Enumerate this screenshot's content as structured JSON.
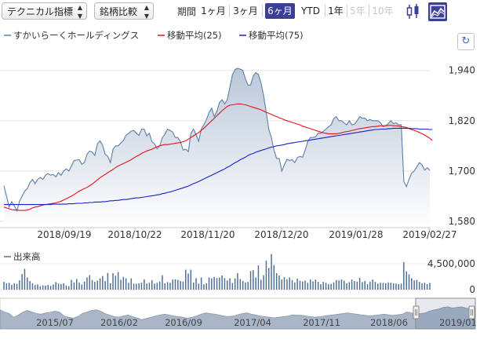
{
  "toolbar": {
    "indicator_select": "テクニカル指標",
    "compare_select": "銘柄比較",
    "period_label": "期間",
    "ranges": [
      {
        "label": "1ヶ月",
        "state": "normal"
      },
      {
        "label": "3ヶ月",
        "state": "normal"
      },
      {
        "label": "6ヶ月",
        "state": "active"
      },
      {
        "label": "YTD",
        "state": "normal"
      },
      {
        "label": "1年",
        "state": "normal"
      },
      {
        "label": "5年",
        "state": "disabled"
      },
      {
        "label": "10年",
        "state": "disabled"
      }
    ],
    "icons": [
      "candlestick-icon",
      "line-chart-icon"
    ],
    "reset_icon": "reset-zoom-icon"
  },
  "colors": {
    "price": "#5b7fa6",
    "area_top": "#b3c1d5",
    "ma25": "#e8131b",
    "ma75": "#1a21c9",
    "volume": "#4f6f94",
    "active": "#3c3f96"
  },
  "chart_data": [
    {
      "type": "line",
      "title": "",
      "legend": [
        "すかいらーくホールディングス",
        "移動平均(25)",
        "移動平均(75)"
      ],
      "x_ticks": [
        "2018/09/19",
        "2018/10/22",
        "2018/11/20",
        "2018/12/20",
        "2019/01/28",
        "2019/02/27"
      ],
      "y_ticks": [
        1580,
        1700,
        1820,
        1940
      ],
      "ylim": [
        1565,
        1990
      ],
      "grid": true,
      "series": [
        {
          "name": "すかいらーくホールディングス",
          "values": [
            1665,
            1640,
            1614,
            1627,
            1617,
            1605,
            1628,
            1640,
            1652,
            1658,
            1672,
            1680,
            1670,
            1680,
            1685,
            1680,
            1690,
            1694,
            1690,
            1692,
            1686,
            1696,
            1690,
            1700,
            1705,
            1700,
            1712,
            1725,
            1726,
            1727,
            1716,
            1720,
            1740,
            1748,
            1745,
            1737,
            1765,
            1772,
            1762,
            1740,
            1735,
            1720,
            1752,
            1760,
            1760,
            1767,
            1773,
            1785,
            1790,
            1795,
            1797,
            1790,
            1785,
            1800,
            1800,
            1784,
            1790,
            1770,
            1765,
            1753,
            1760,
            1780,
            1788,
            1800,
            1797,
            1793,
            1780,
            1780,
            1770,
            1750,
            1752,
            1746,
            1790,
            1800,
            1787,
            1771,
            1800,
            1810,
            1823,
            1840,
            1850,
            1830,
            1843,
            1863,
            1870,
            1860,
            1870,
            1900,
            1930,
            1942,
            1945,
            1943,
            1940,
            1920,
            1905,
            1905,
            1927,
            1935,
            1930,
            1910,
            1880,
            1840,
            1800,
            1780,
            1750,
            1730,
            1730,
            1700,
            1715,
            1728,
            1725,
            1727,
            1720,
            1732,
            1735,
            1733,
            1750,
            1770,
            1780,
            1780,
            1782,
            1790,
            1790,
            1795,
            1800,
            1806,
            1810,
            1825,
            1830,
            1820,
            1820,
            1815,
            1810,
            1820,
            1810,
            1812,
            1820,
            1830,
            1826,
            1826,
            1820,
            1823,
            1820,
            1820,
            1820,
            1815,
            1806,
            1808,
            1813,
            1820,
            1813,
            1815,
            1810,
            1810,
            1675,
            1663,
            1680,
            1695,
            1700,
            1710,
            1720,
            1715,
            1702,
            1708,
            1702
          ]
        },
        {
          "name": "移動平均(25)",
          "values": [
            1614,
            1612,
            1610,
            1608,
            1607,
            1607,
            1606,
            1606,
            1606,
            1607,
            1609,
            1612,
            1614,
            1615,
            1617,
            1619,
            1620,
            1621,
            1622,
            1623,
            1624,
            1626,
            1628,
            1631,
            1634,
            1637,
            1640,
            1644,
            1648,
            1652,
            1655,
            1658,
            1661,
            1665,
            1669,
            1674,
            1679,
            1684,
            1688,
            1692,
            1696,
            1700,
            1704,
            1708,
            1712,
            1715,
            1718,
            1721,
            1724,
            1727,
            1731,
            1735,
            1738,
            1742,
            1745,
            1748,
            1750,
            1752,
            1755,
            1758,
            1760,
            1762,
            1763,
            1763,
            1764,
            1765,
            1766,
            1767,
            1768,
            1770,
            1772,
            1776,
            1780,
            1784,
            1788,
            1792,
            1797,
            1802,
            1808,
            1814,
            1820,
            1826,
            1832,
            1838,
            1844,
            1849,
            1854,
            1857,
            1858,
            1859,
            1860,
            1860,
            1859,
            1858,
            1856,
            1854,
            1852,
            1850,
            1848,
            1846,
            1843,
            1840,
            1838,
            1835,
            1832,
            1830,
            1827,
            1825,
            1822,
            1820,
            1818,
            1816,
            1814,
            1812,
            1810,
            1807,
            1805,
            1803,
            1801,
            1799,
            1797,
            1795,
            1793,
            1791,
            1790,
            1789,
            1789,
            1789,
            1789,
            1790,
            1791,
            1793,
            1794,
            1795,
            1797,
            1798,
            1800,
            1801,
            1802,
            1803,
            1804,
            1805,
            1806,
            1806,
            1807,
            1808,
            1808,
            1808,
            1809,
            1809,
            1808,
            1808,
            1807,
            1806,
            1805,
            1804,
            1801,
            1799,
            1797,
            1795,
            1792,
            1789,
            1786,
            1782,
            1778,
            1773
          ]
        },
        {
          "name": "移動平均(75)",
          "values": [
            1620,
            1620,
            1620,
            1620,
            1620,
            1620,
            1620,
            1620,
            1620,
            1620,
            1620,
            1620,
            1620,
            1620,
            1620,
            1620,
            1620,
            1620,
            1620,
            1621,
            1621,
            1621,
            1621,
            1621,
            1621,
            1622,
            1622,
            1622,
            1623,
            1623,
            1623,
            1624,
            1624,
            1625,
            1625,
            1626,
            1626,
            1626,
            1627,
            1627,
            1628,
            1629,
            1629,
            1630,
            1630,
            1631,
            1632,
            1632,
            1633,
            1634,
            1635,
            1636,
            1636,
            1637,
            1638,
            1639,
            1640,
            1641,
            1642,
            1643,
            1644,
            1646,
            1647,
            1649,
            1650,
            1652,
            1654,
            1656,
            1658,
            1660,
            1662,
            1664,
            1667,
            1670,
            1672,
            1675,
            1678,
            1681,
            1684,
            1687,
            1690,
            1693,
            1696,
            1699,
            1702,
            1705,
            1709,
            1712,
            1716,
            1720,
            1723,
            1727,
            1730,
            1733,
            1737,
            1740,
            1742,
            1745,
            1747,
            1749,
            1751,
            1753,
            1755,
            1757,
            1758,
            1760,
            1761,
            1762,
            1763,
            1765,
            1766,
            1767,
            1768,
            1769,
            1770,
            1771,
            1772,
            1773,
            1774,
            1775,
            1776,
            1777,
            1778,
            1779,
            1780,
            1781,
            1782,
            1783,
            1784,
            1785,
            1786,
            1787,
            1788,
            1789,
            1790,
            1791,
            1792,
            1793,
            1794,
            1795,
            1796,
            1797,
            1798,
            1799,
            1799,
            1800,
            1800,
            1800,
            1801,
            1801,
            1802,
            1802,
            1802,
            1802,
            1802,
            1802,
            1802,
            1801,
            1801,
            1801,
            1800,
            1800,
            1800,
            1800,
            1799,
            1799
          ]
        }
      ]
    },
    {
      "type": "bar",
      "legend": [
        "出来高"
      ],
      "y_ticks": [
        0,
        4500000
      ],
      "ylim": [
        0,
        7200000
      ],
      "series": [
        {
          "name": "出来高",
          "values": [
            1350000,
            1100000,
            1200000,
            850000,
            1100000,
            1000000,
            1600000,
            2700000,
            3600000,
            2100000,
            1500000,
            1100000,
            800000,
            900000,
            600000,
            750000,
            700000,
            800000,
            650000,
            900000,
            1300000,
            1050000,
            950000,
            1100000,
            700000,
            600000,
            1700000,
            1250000,
            1850000,
            1200000,
            900000,
            1400000,
            2100000,
            2500000,
            1650000,
            1350000,
            1550000,
            1950000,
            2350000,
            1500000,
            2900000,
            1100000,
            2850000,
            2400000,
            3050000,
            1700000,
            2200000,
            1950000,
            1200000,
            1950000,
            1050000,
            1000000,
            1100000,
            1200000,
            1800000,
            1050000,
            1200000,
            1650000,
            1050000,
            1200000,
            1400000,
            2500000,
            1100000,
            1300000,
            1200000,
            1750000,
            1800000,
            1700000,
            1500000,
            1400000,
            3450000,
            2800000,
            3450000,
            1250000,
            2000000,
            1050000,
            2100000,
            900000,
            1100000,
            2100000,
            1950000,
            2200000,
            2000000,
            2100000,
            2450000,
            2000000,
            1600000,
            2000000,
            1150000,
            1950000,
            2850000,
            1850000,
            1500000,
            1250000,
            1350000,
            3200000,
            3350000,
            2100000,
            4200000,
            1700000,
            2500000,
            5000000,
            3750000,
            6150000,
            4250000,
            2850000,
            2450000,
            1750000,
            2150000,
            1800000,
            2100000,
            1650000,
            1250000,
            1900000,
            1550000,
            1400000,
            1550000,
            1200000,
            1750000,
            1450000,
            1750000,
            1350000,
            950000,
            1350000,
            1200000,
            950000,
            1000000,
            1250000,
            1650000,
            1600000,
            1750000,
            1550000,
            1100000,
            1300000,
            1750000,
            1500000,
            1400000,
            2050000,
            1300000,
            1500000,
            950000,
            1400000,
            1750000,
            1350000,
            1050000,
            1200000,
            1150000,
            1100000,
            1250000,
            1200000,
            1100000,
            1050000,
            950000,
            1050000,
            4750000,
            3150000,
            2650000,
            2000000,
            1600000,
            1700000,
            1350000,
            1100000,
            1200000,
            950000,
            1150000
          ]
        }
      ]
    },
    {
      "type": "area",
      "x_ticks": [
        "2015/07",
        "2016/02",
        "2016/09",
        "2017/04",
        "2017/11",
        "2018/06",
        "2019/01"
      ],
      "series": [
        {
          "name": "",
          "values": [
            0.62,
            0.55,
            0.5,
            0.38,
            0.45,
            0.55,
            0.6,
            0.55,
            0.5,
            0.48,
            0.52,
            0.54,
            0.58,
            0.55,
            0.42,
            0.38,
            0.35,
            0.4,
            0.5,
            0.55,
            0.6,
            0.62,
            0.58,
            0.5,
            0.45,
            0.4,
            0.38,
            0.42,
            0.45,
            0.4,
            0.36,
            0.3,
            0.34,
            0.38,
            0.42,
            0.45,
            0.48,
            0.45,
            0.42,
            0.4,
            0.38,
            0.35,
            0.38,
            0.42,
            0.48,
            0.52,
            0.5,
            0.48,
            0.45,
            0.42,
            0.4,
            0.42,
            0.46,
            0.5,
            0.52,
            0.48,
            0.45,
            0.42,
            0.4,
            0.38,
            0.36,
            0.38,
            0.4,
            0.42,
            0.46,
            0.45,
            0.44,
            0.42,
            0.4,
            0.38,
            0.4,
            0.42,
            0.44,
            0.46,
            0.48,
            0.5,
            0.52,
            0.5,
            0.48,
            0.46,
            0.44,
            0.42,
            0.44,
            0.46,
            0.48,
            0.46,
            0.44,
            0.46,
            0.48,
            0.55,
            0.52,
            0.48,
            0.5,
            0.52,
            0.58,
            0.62,
            0.65,
            0.7,
            0.72,
            0.68,
            0.7,
            0.72,
            0.68,
            0.66,
            0.7
          ]
        }
      ]
    }
  ]
}
